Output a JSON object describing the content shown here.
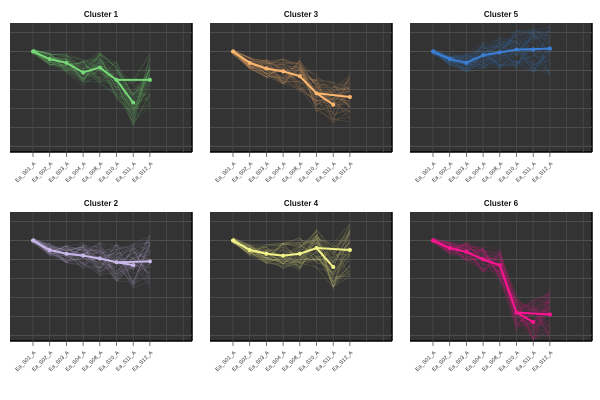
{
  "chart_data": [
    {
      "type": "line",
      "title": "Cluster 1",
      "color": "#77d977",
      "categories": [
        "Ea_S01_A",
        "Ea_S02_A",
        "Ea_S03_A",
        "Ea_S04_A",
        "Ea_S08_A",
        "Ea_S10_A",
        "Ea_S11_A",
        "Ea_S12_A"
      ],
      "values": [
        5,
        4.6,
        4.4,
        3.9,
        4.15,
        3.5,
        2.3,
        3.5
      ],
      "ylim": [
        -0.3,
        6.5
      ],
      "grid": true
    },
    {
      "type": "line",
      "title": "Cluster 3",
      "color": "#ffb870",
      "categories": [
        "Ea_S01_A",
        "Ea_S02_A",
        "Ea_S03_A",
        "Ea_S04_A",
        "Ea_S08_A",
        "Ea_S10_A",
        "Ea_S11_A",
        "Ea_S12_A"
      ],
      "values": [
        5,
        4.4,
        4.1,
        3.95,
        3.7,
        2.8,
        2.2,
        2.6
      ],
      "ylim": [
        -0.3,
        6.5
      ],
      "grid": true
    },
    {
      "type": "line",
      "title": "Cluster 5",
      "color": "#3a7fd5",
      "categories": [
        "Ea_S01_A",
        "Ea_S02_A",
        "Ea_S03_A",
        "Ea_S04_A",
        "Ea_S08_A",
        "Ea_S10_A",
        "Ea_S11_A",
        "Ea_S12_A"
      ],
      "values": [
        5,
        4.6,
        4.4,
        4.8,
        4.95,
        5.1,
        5.1,
        5.15
      ],
      "ylim": [
        -0.3,
        6.5
      ],
      "grid": true
    },
    {
      "type": "line",
      "title": "Cluster 2",
      "color": "#c9b8ea",
      "categories": [
        "Ea_S01_A",
        "Ea_S02_A",
        "Ea_S03_A",
        "Ea_S04_A",
        "Ea_S08_A",
        "Ea_S10_A",
        "Ea_S11_A",
        "Ea_S12_A"
      ],
      "values": [
        5,
        4.5,
        4.3,
        4.2,
        4.05,
        3.85,
        3.7,
        3.9
      ],
      "ylim": [
        -0.3,
        6.5
      ],
      "grid": true
    },
    {
      "type": "line",
      "title": "Cluster 4",
      "color": "#f3f38a",
      "categories": [
        "Ea_S01_A",
        "Ea_S02_A",
        "Ea_S03_A",
        "Ea_S04_A",
        "Ea_S08_A",
        "Ea_S10_A",
        "Ea_S11_A",
        "Ea_S12_A"
      ],
      "values": [
        5,
        4.5,
        4.3,
        4.2,
        4.3,
        4.6,
        3.6,
        4.5
      ],
      "ylim": [
        -0.3,
        6.5
      ],
      "grid": true
    },
    {
      "type": "line",
      "title": "Cluster 6",
      "color": "#ff1493",
      "categories": [
        "Ea_S01_A",
        "Ea_S02_A",
        "Ea_S03_A",
        "Ea_S04_A",
        "Ea_S08_A",
        "Ea_S10_A",
        "Ea_S11_A",
        "Ea_S12_A"
      ],
      "values": [
        5,
        4.6,
        4.4,
        4.0,
        3.7,
        1.2,
        0.7,
        1.1
      ],
      "ylim": [
        -0.3,
        6.5
      ],
      "grid": true
    }
  ]
}
